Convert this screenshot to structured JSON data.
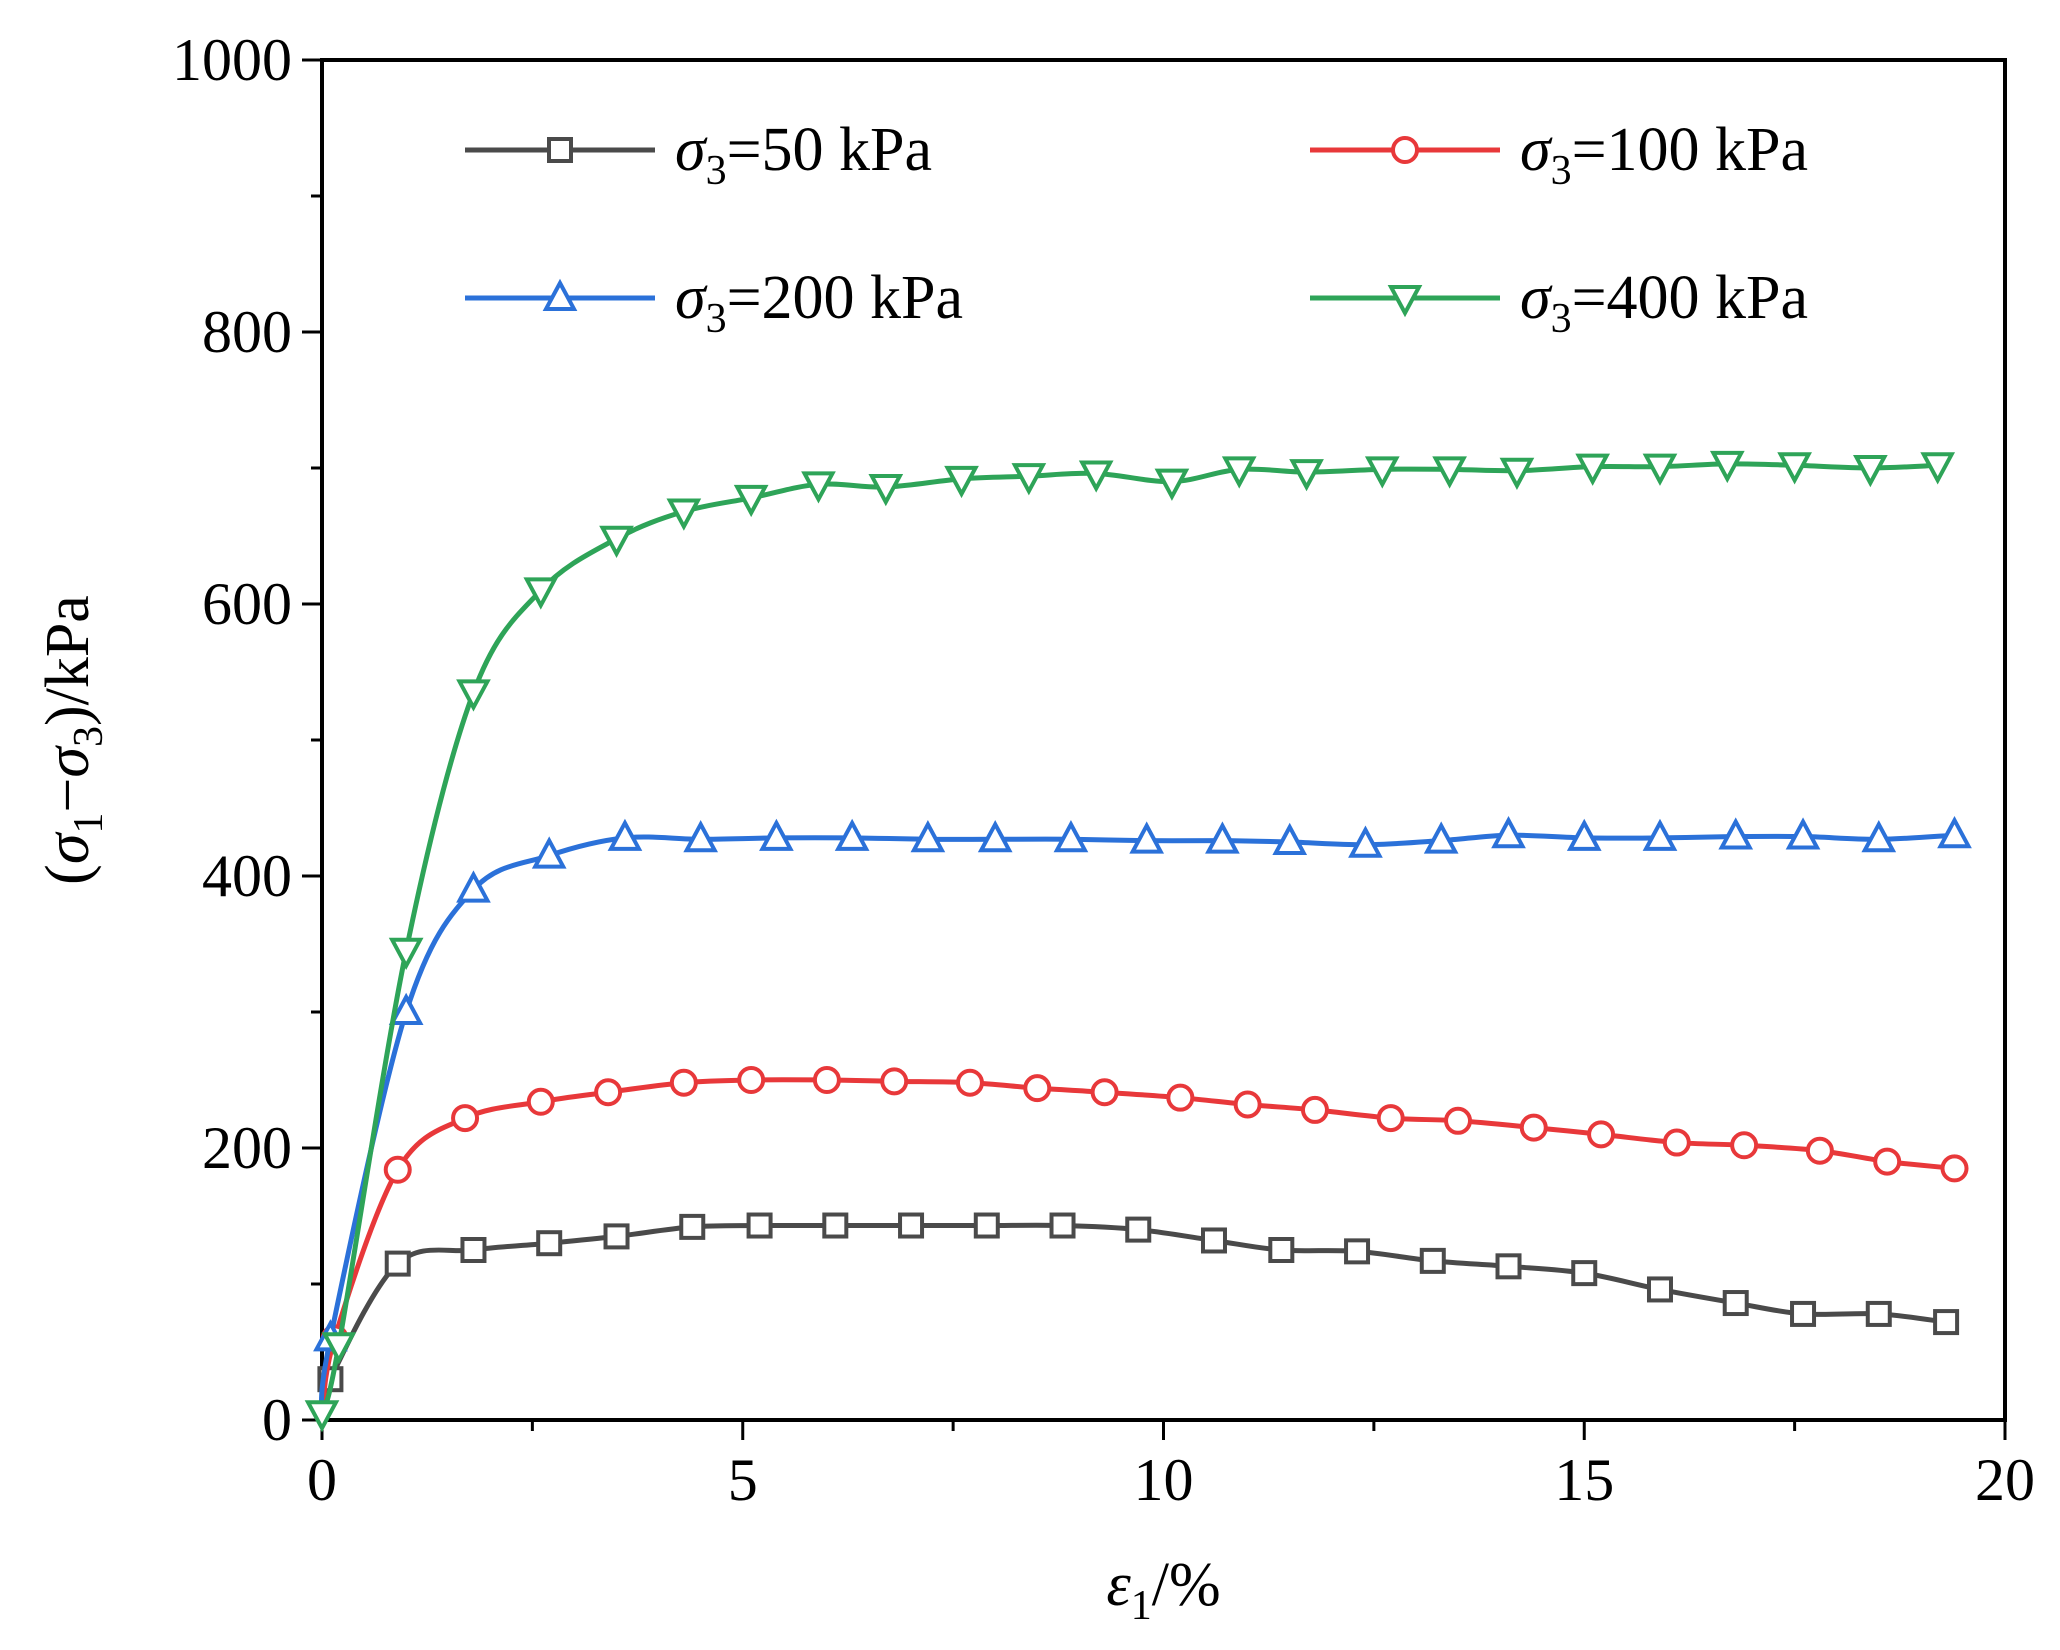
{
  "chart_data": {
    "type": "line",
    "title": "",
    "xlabel": {
      "symbol": "ε",
      "sub": "1",
      "rest": "/%"
    },
    "ylabel": {
      "p1": "(",
      "s1": "σ",
      "sub1": "1",
      "dash": "−",
      "s2": "σ",
      "sub2": "3",
      "p2": ")/kPa"
    },
    "xlim": [
      0,
      20
    ],
    "ylim": [
      0,
      1000
    ],
    "xticks": [
      0,
      5,
      10,
      15,
      20
    ],
    "yticks": [
      0,
      200,
      400,
      600,
      800,
      1000
    ],
    "grid": false,
    "legend_position": "top",
    "series": [
      {
        "name": "σ3=50 kPa",
        "label_sym": "σ",
        "label_sub": "3",
        "label_rest": "=50 kPa",
        "color": "#4a4a4a",
        "marker": "square",
        "x": [
          0.1,
          0.9,
          1.8,
          2.7,
          3.5,
          4.4,
          5.2,
          6.1,
          7.0,
          7.9,
          8.8,
          9.7,
          10.6,
          11.4,
          12.3,
          13.2,
          14.1,
          15.0,
          15.9,
          16.8,
          17.6,
          18.5,
          19.3
        ],
        "y": [
          30,
          115,
          125,
          130,
          135,
          142,
          143,
          143,
          143,
          143,
          143,
          140,
          132,
          125,
          124,
          117,
          113,
          108,
          96,
          86,
          78,
          78,
          72
        ]
      },
      {
        "name": "σ3=100 kPa",
        "label_sym": "σ",
        "label_sub": "3",
        "label_rest": "=100 kPa",
        "color": "#e8383a",
        "marker": "circle",
        "x": [
          0.15,
          0.9,
          1.7,
          2.6,
          3.4,
          4.3,
          5.1,
          6.0,
          6.8,
          7.7,
          8.5,
          9.3,
          10.2,
          11.0,
          11.8,
          12.7,
          13.5,
          14.4,
          15.2,
          16.1,
          16.9,
          17.8,
          18.6,
          19.4
        ],
        "y": [
          60,
          184,
          222,
          234,
          241,
          248,
          250,
          250,
          249,
          248,
          244,
          241,
          237,
          232,
          228,
          222,
          220,
          215,
          210,
          204,
          202,
          198,
          190,
          185
        ]
      },
      {
        "name": "σ3=200 kPa",
        "label_sym": "σ",
        "label_sub": "3",
        "label_rest": "=200 kPa",
        "color": "#2b71d9",
        "marker": "triangle-up",
        "x": [
          0.1,
          1.0,
          1.8,
          2.7,
          3.6,
          4.5,
          5.4,
          6.3,
          7.2,
          8.0,
          8.9,
          9.8,
          10.7,
          11.5,
          12.4,
          13.3,
          14.1,
          15.0,
          15.9,
          16.8,
          17.6,
          18.5,
          19.4
        ],
        "y": [
          60,
          300,
          390,
          415,
          428,
          427,
          428,
          428,
          427,
          427,
          427,
          426,
          426,
          425,
          423,
          426,
          430,
          428,
          428,
          429,
          429,
          427,
          430
        ]
      },
      {
        "name": "σ3=400 kPa",
        "label_sym": "σ",
        "label_sub": "3",
        "label_rest": "=400 kPa",
        "color": "#2ea458",
        "marker": "triangle-down",
        "x": [
          0.0,
          0.2,
          1.0,
          1.8,
          2.6,
          3.5,
          4.3,
          5.1,
          5.9,
          6.7,
          7.6,
          8.4,
          9.2,
          10.1,
          10.9,
          11.7,
          12.6,
          13.4,
          14.2,
          15.1,
          15.9,
          16.7,
          17.5,
          18.4,
          19.2
        ],
        "y": [
          5,
          55,
          345,
          535,
          610,
          648,
          668,
          678,
          688,
          686,
          692,
          694,
          696,
          690,
          699,
          697,
          699,
          699,
          698,
          701,
          701,
          703,
          702,
          700,
          702
        ]
      }
    ]
  }
}
